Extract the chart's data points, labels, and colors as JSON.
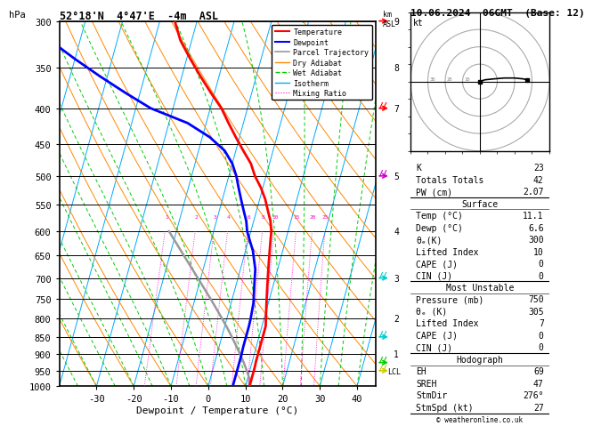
{
  "title_left": "52°18'N  4°47'E  -4m  ASL",
  "title_right": "10.06.2024  06GMT  (Base: 12)",
  "xlabel": "Dewpoint / Temperature (°C)",
  "ylabel_left": "hPa",
  "isotherm_color": "#00aaff",
  "dry_adiabat_color": "#ff8800",
  "wet_adiabat_color": "#00cc00",
  "mixing_ratio_color": "#ff00cc",
  "mixing_ratio_values": [
    1,
    2,
    3,
    4,
    6,
    8,
    10,
    15,
    20,
    25
  ],
  "pmin": 300,
  "pmax": 1000,
  "tmin": -40,
  "tmax": 45,
  "skew_factor": 27,
  "temperature_profile": {
    "pressure": [
      300,
      320,
      340,
      360,
      380,
      400,
      420,
      440,
      460,
      480,
      500,
      520,
      540,
      560,
      580,
      600,
      620,
      640,
      660,
      680,
      700,
      720,
      740,
      760,
      780,
      800,
      820,
      840,
      860,
      880,
      900,
      920,
      940,
      960,
      980,
      1000
    ],
    "temperature": [
      -36,
      -33,
      -29,
      -25,
      -21,
      -17,
      -14,
      -11,
      -8,
      -5,
      -3,
      -0.5,
      1.5,
      3,
      4.5,
      5.5,
      6,
      6.5,
      7,
      7.5,
      8,
      8.5,
      9,
      9.5,
      10,
      10.5,
      11,
      11,
      11,
      11,
      11,
      11,
      11.1,
      11.1,
      11.1,
      11.1
    ],
    "color": "#ff0000",
    "linewidth": 2.0
  },
  "dewpoint_profile": {
    "pressure": [
      300,
      320,
      340,
      360,
      380,
      400,
      420,
      440,
      460,
      480,
      500,
      520,
      540,
      560,
      580,
      600,
      620,
      640,
      660,
      680,
      700,
      720,
      740,
      760,
      780,
      800,
      820,
      840,
      860,
      880,
      900,
      920,
      940,
      960,
      980,
      1000
    ],
    "temperature": [
      -75,
      -68,
      -60,
      -52,
      -44,
      -36,
      -25,
      -18,
      -13,
      -10,
      -8,
      -6.5,
      -5,
      -3.5,
      -2,
      -1,
      0.5,
      2,
      3,
      4,
      4.5,
      5,
      5.5,
      6,
      6.2,
      6.4,
      6.5,
      6.5,
      6.5,
      6.5,
      6.6,
      6.6,
      6.6,
      6.6,
      6.6,
      6.6
    ],
    "color": "#0000ff",
    "linewidth": 2.0
  },
  "parcel_trajectory": {
    "pressure": [
      1000,
      975,
      950,
      925,
      900,
      875,
      850,
      825,
      800,
      775,
      750,
      700,
      650,
      600
    ],
    "temperature": [
      11.1,
      10.5,
      9.2,
      7.8,
      6.2,
      4.5,
      2.7,
      0.8,
      -1.3,
      -3.5,
      -5.8,
      -10.8,
      -16.2,
      -22.0
    ],
    "color": "#999999",
    "linewidth": 1.8
  },
  "lcl_pressure": 952,
  "wind_barbs": [
    {
      "pressure": 300,
      "color": "#ff0000",
      "u": -2,
      "v": 3
    },
    {
      "pressure": 400,
      "color": "#ff0000",
      "u": -1,
      "v": 2
    },
    {
      "pressure": 500,
      "color": "#cc00cc",
      "u": 0,
      "v": 1
    },
    {
      "pressure": 700,
      "color": "#00cccc",
      "u": 1,
      "v": 1
    },
    {
      "pressure": 850,
      "color": "#00cccc",
      "u": 2,
      "v": 1
    },
    {
      "pressure": 925,
      "color": "#00cc00",
      "u": 2,
      "v": 1
    },
    {
      "pressure": 950,
      "color": "#cccc00",
      "u": 2,
      "v": 1
    }
  ],
  "km_labels": [
    {
      "pressure": 300,
      "km": 9
    },
    {
      "pressure": 350,
      "km": 8
    },
    {
      "pressure": 400,
      "km": 7
    },
    {
      "pressure": 500,
      "km": 5
    },
    {
      "pressure": 600,
      "km": 4
    },
    {
      "pressure": 700,
      "km": 3
    },
    {
      "pressure": 800,
      "km": 2
    },
    {
      "pressure": 900,
      "km": 1
    }
  ],
  "hodograph_points": [
    [
      0,
      0
    ],
    [
      3,
      1
    ],
    [
      8,
      1.5
    ],
    [
      14,
      2
    ],
    [
      20,
      2
    ],
    [
      25,
      1.5
    ],
    [
      27,
      1
    ]
  ],
  "info": {
    "K": "23",
    "Totals Totals": "42",
    "PW (cm)": "2.07",
    "Surface_Temp": "11.1",
    "Surface_Dewp": "6.6",
    "Surface_theta_e": "300",
    "Surface_LI": "10",
    "Surface_CAPE": "0",
    "Surface_CIN": "0",
    "MU_Pressure": "750",
    "MU_theta_e": "305",
    "MU_LI": "7",
    "MU_CAPE": "0",
    "MU_CIN": "0",
    "EH": "69",
    "SREH": "47",
    "StmDir": "276°",
    "StmSpd": "27"
  }
}
